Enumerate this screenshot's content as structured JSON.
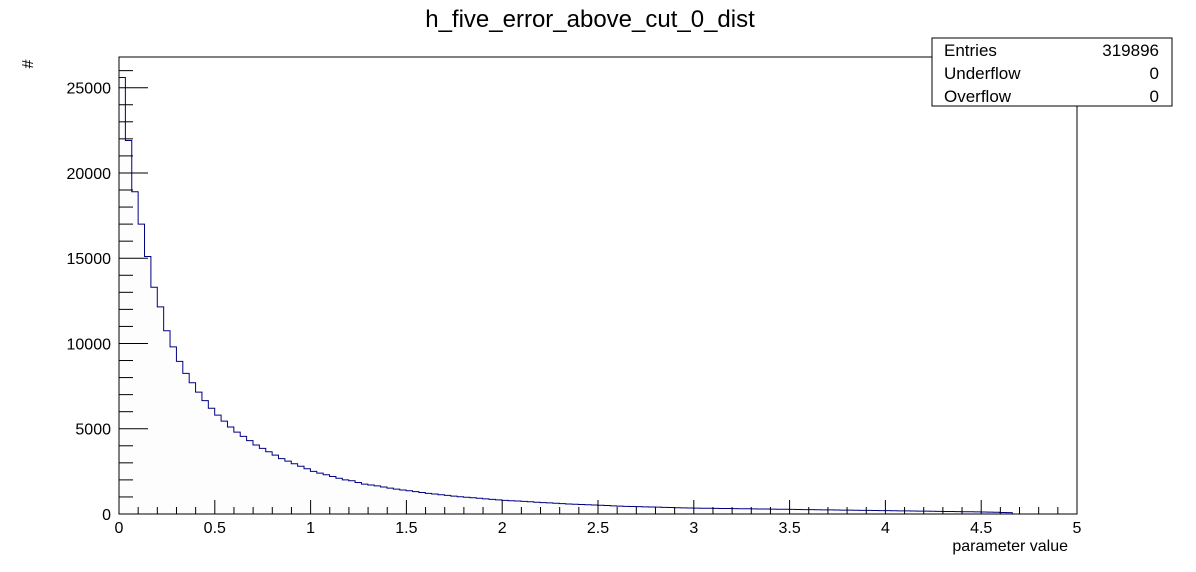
{
  "chart_data": {
    "type": "bar",
    "title": "h_five_error_above_cut_0_dist",
    "xlabel": "parameter value",
    "ylabel": "#",
    "xlim": [
      0,
      5
    ],
    "ylim": [
      0,
      26800
    ],
    "bin_width": 0.0333,
    "x_ticks": [
      "0",
      "0.5",
      "1",
      "1.5",
      "2",
      "2.5",
      "3",
      "3.5",
      "4",
      "4.5",
      "5"
    ],
    "y_ticks": [
      "0",
      "5000",
      "10000",
      "15000",
      "20000",
      "25000"
    ],
    "values": [
      25600,
      21900,
      18900,
      17000,
      15100,
      13300,
      12150,
      10750,
      9800,
      8950,
      8250,
      7700,
      7150,
      6650,
      6200,
      5800,
      5450,
      5100,
      4800,
      4550,
      4300,
      4050,
      3850,
      3650,
      3450,
      3250,
      3100,
      2950,
      2800,
      2650,
      2500,
      2400,
      2300,
      2200,
      2100,
      2000,
      1950,
      1850,
      1750,
      1700,
      1650,
      1580,
      1520,
      1460,
      1410,
      1360,
      1310,
      1260,
      1210,
      1170,
      1130,
      1090,
      1050,
      1010,
      980,
      950,
      920,
      890,
      860,
      830,
      800,
      780,
      760,
      740,
      715,
      690,
      670,
      650,
      630,
      610,
      590,
      570,
      555,
      540,
      525,
      510,
      495,
      480,
      465,
      450,
      440,
      430,
      420,
      410,
      400,
      390,
      380,
      370,
      360,
      350,
      345,
      340,
      335,
      330,
      325,
      320,
      315,
      310,
      305,
      300,
      295,
      290,
      285,
      280,
      275,
      270,
      265,
      260,
      255,
      250,
      245,
      240,
      235,
      230,
      225,
      220,
      215,
      210,
      205,
      200,
      195,
      190,
      185,
      180,
      175,
      170,
      165,
      160,
      155,
      150,
      145,
      140,
      135,
      130,
      125,
      120,
      110,
      100,
      90,
      80
    ],
    "line_color": "#000080",
    "fill_color": "#fdfdfd",
    "stats": [
      {
        "label": "Entries",
        "value": "319896"
      },
      {
        "label": "Underflow",
        "value": "0"
      },
      {
        "label": "Overflow",
        "value": "0"
      }
    ],
    "grid": false,
    "legend_position": "top-right"
  }
}
